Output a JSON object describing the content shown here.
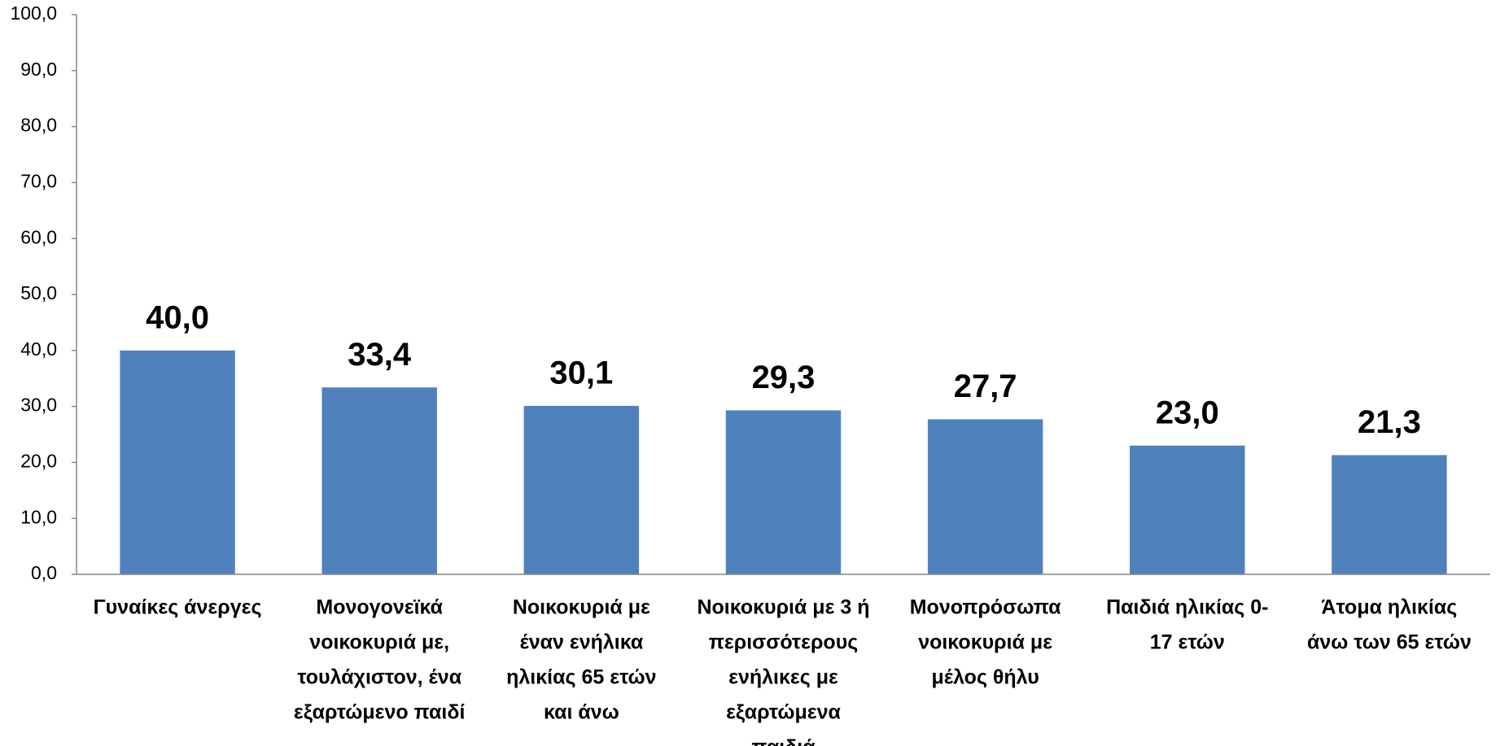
{
  "chart_data": {
    "type": "bar",
    "categories": [
      [
        "Γυναίκες  άνεργες"
      ],
      [
        "Μονογονεϊκά",
        "νοικοκυριά με,",
        "τουλάχιστον, ένα",
        "εξαρτώμενο παιδί"
      ],
      [
        "Νοικοκυριά με",
        "έναν ενήλικα",
        "ηλικίας 65 ετών",
        "και άνω"
      ],
      [
        "Νοικοκυριά με 3 ή",
        "περισσότερους",
        "ενήλικες με",
        "εξαρτώμενα",
        "παιδιά"
      ],
      [
        "Μονοπρόσωπα",
        "νοικοκυριά με",
        "μέλος θήλυ"
      ],
      [
        "Παιδιά ηλικίας 0-",
        "17 ετών"
      ],
      [
        "Άτομα ηλικίας",
        "άνω των 65  ετών"
      ]
    ],
    "values": [
      40.0,
      33.4,
      30.1,
      29.3,
      27.7,
      23.0,
      21.3
    ],
    "value_labels": [
      "40,0",
      "33,4",
      "30,1",
      "29,3",
      "27,7",
      "23,0",
      "21,3"
    ],
    "color": "#4f81bd",
    "ylim": [
      0,
      100
    ],
    "yticks": [
      {
        "value": 0,
        "label": "0,0"
      },
      {
        "value": 10,
        "label": "10,0"
      },
      {
        "value": 20,
        "label": "20,0"
      },
      {
        "value": 30,
        "label": "30,0"
      },
      {
        "value": 40,
        "label": "40,0"
      },
      {
        "value": 50,
        "label": "50,0"
      },
      {
        "value": 60,
        "label": "60,0"
      },
      {
        "value": 70,
        "label": "70,0"
      },
      {
        "value": 80,
        "label": "80,0"
      },
      {
        "value": 90,
        "label": "90,0"
      },
      {
        "value": 100,
        "label": "100,0"
      }
    ],
    "grid": false
  }
}
